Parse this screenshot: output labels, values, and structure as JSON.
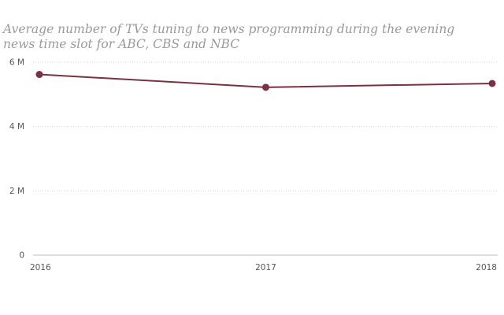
{
  "chart_data": {
    "type": "line",
    "title": "Average number of TVs tuning to news programming during the evening news time slot for ABC, CBS and NBC",
    "x": [
      "2016",
      "2017",
      "2018"
    ],
    "series": [
      {
        "values": [
          5.62,
          5.22,
          5.34
        ]
      }
    ],
    "ylim": [
      0,
      6
    ],
    "yticks": [
      {
        "value": 0,
        "label": "0"
      },
      {
        "value": 2,
        "label": "2 M"
      },
      {
        "value": 4,
        "label": "4 M"
      },
      {
        "value": 6,
        "label": "6 M"
      }
    ],
    "grid": true,
    "line_color": "#7a3141"
  }
}
